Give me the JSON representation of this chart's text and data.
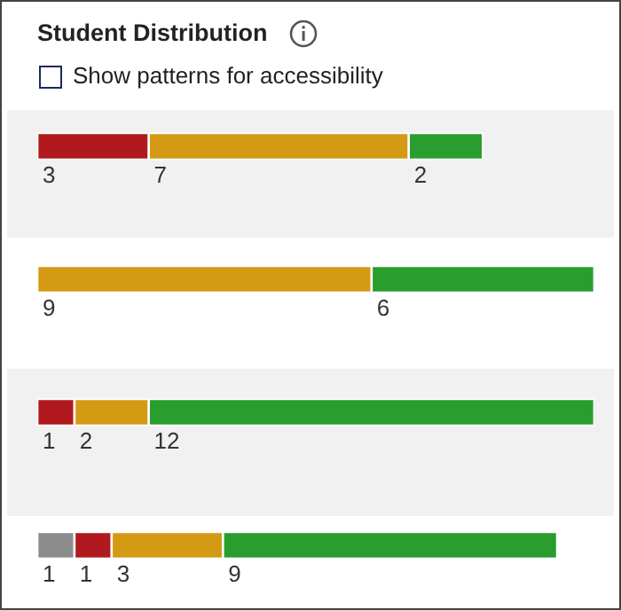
{
  "chart_data": {
    "type": "bar",
    "title": "Student Distribution",
    "annotations": [
      "Show patterns for accessibility"
    ],
    "categories": [
      null,
      null,
      null,
      null
    ],
    "orientation": "horizontal",
    "stacked": true,
    "data_labels": true,
    "series": [
      {
        "color": "#8c8c8c",
        "values": [
          null,
          null,
          null,
          1
        ]
      },
      {
        "color": "#b0191e",
        "values": [
          3,
          null,
          1,
          1
        ]
      },
      {
        "color": "#d49a14",
        "values": [
          7,
          9,
          2,
          3
        ]
      },
      {
        "color": "#2a9d2f",
        "values": [
          2,
          6,
          12,
          9
        ]
      }
    ]
  }
}
